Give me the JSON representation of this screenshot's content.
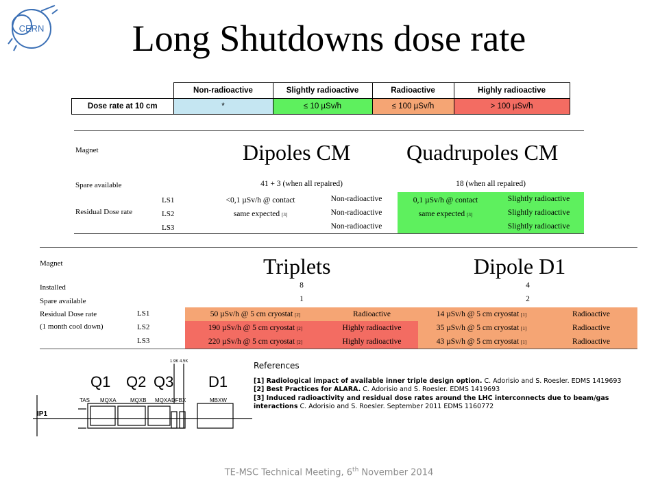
{
  "logo": {
    "text": "CERN"
  },
  "title": "Long Shutdowns dose rate",
  "legend": {
    "headers": [
      "Non-radioactive",
      "Slightly radioactive",
      "Radioactive",
      "Highly radioactive"
    ],
    "row_label": "Dose rate at 10 cm",
    "values": [
      "*",
      "≤ 10 µSv/h",
      "≤ 100 µSv/h",
      "> 100 µSv/h"
    ],
    "colors": {
      "non": "#c5e6f2",
      "slight": "#5ef05e",
      "rad": "#f5a574",
      "high": "#f36c62"
    }
  },
  "table1": {
    "magnet_label": "Magnet",
    "col1_title": "Dipoles CM",
    "col2_title": "Quadrupoles CM",
    "spare_label": "Spare available",
    "col1_spare": "41 + 3 (when all repaired)",
    "col2_spare": "18 (when all repaired)",
    "residual_label": "Residual Dose rate",
    "ls": [
      "LS1",
      "LS2",
      "LS3"
    ],
    "col1_line1": "<0,1 µSv/h @ contact",
    "col1_line2": "same expected",
    "col1_ref": "[3]",
    "col1_status": [
      "Non-radioactive",
      "Non-radioactive",
      "Non-radioactive"
    ],
    "col2_line1": "0,1 µSv/h @ contact",
    "col2_line2": "same expected",
    "col2_ref": "[3]",
    "col2_status": [
      "Slightly radioactive",
      "Slightly radioactive",
      "Slightly radioactive"
    ]
  },
  "table2": {
    "magnet_label": "Magnet",
    "col1_title": "Triplets",
    "col2_title": "Dipole D1",
    "installed_label": "Installed",
    "col1_installed": "8",
    "col2_installed": "4",
    "spare_label": "Spare available",
    "col1_spare": "1",
    "col2_spare": "2",
    "residual_label": "Residual Dose rate",
    "residual_label2": "(1 month cool down)",
    "ls": [
      "LS1",
      "LS2",
      "LS3"
    ],
    "col1_values": [
      "50  µSv/h @ 5 cm cryostat",
      "190 µSv/h @ 5 cm cryostat",
      "220 µSv/h @ 5 cm cryostat"
    ],
    "col1_ref": "[2]",
    "col1_status": [
      "Radioactive",
      "Highly radioactive",
      "Highly radioactive"
    ],
    "col2_values": [
      "14 µSv/h @ 5 cm cryostat",
      "35 µSv/h @ 5 cm cryostat",
      "43 µSv/h @ 5 cm cryostat"
    ],
    "col2_ref": "[1]",
    "col2_status": [
      "Radioactive",
      "Radioactive",
      "Radioactive"
    ]
  },
  "diagram": {
    "labels": [
      "Q1",
      "Q2",
      "Q3",
      "D1"
    ],
    "sub_labels": [
      "TAS",
      "MQXA",
      "MQXB",
      "MQXA",
      "DFBX",
      "MBXW"
    ],
    "ip": "IP1",
    "temps": [
      "1.9K",
      "4.5K"
    ]
  },
  "references": {
    "heading": "References",
    "items": [
      {
        "bold": "[1] Radiological impact of available inner triple design option.",
        "rest": " C. Adorisio and S. Roesler. EDMS 1419693"
      },
      {
        "bold": "[2] Best Practices for ALARA.",
        "rest": " C. Adorisio and S. Roesler. EDMS 1419693"
      },
      {
        "bold": "[3] Induced radioactivity and residual dose rates around the LHC interconnects due to beam/gas interactions",
        "rest": "  C. Adorisio and S. Roesler. September 2011 EDMS 1160772"
      }
    ]
  },
  "footer": {
    "text": "TE-MSC Technical Meeting, 6",
    "sup": "th",
    "text2": " November 2014"
  }
}
